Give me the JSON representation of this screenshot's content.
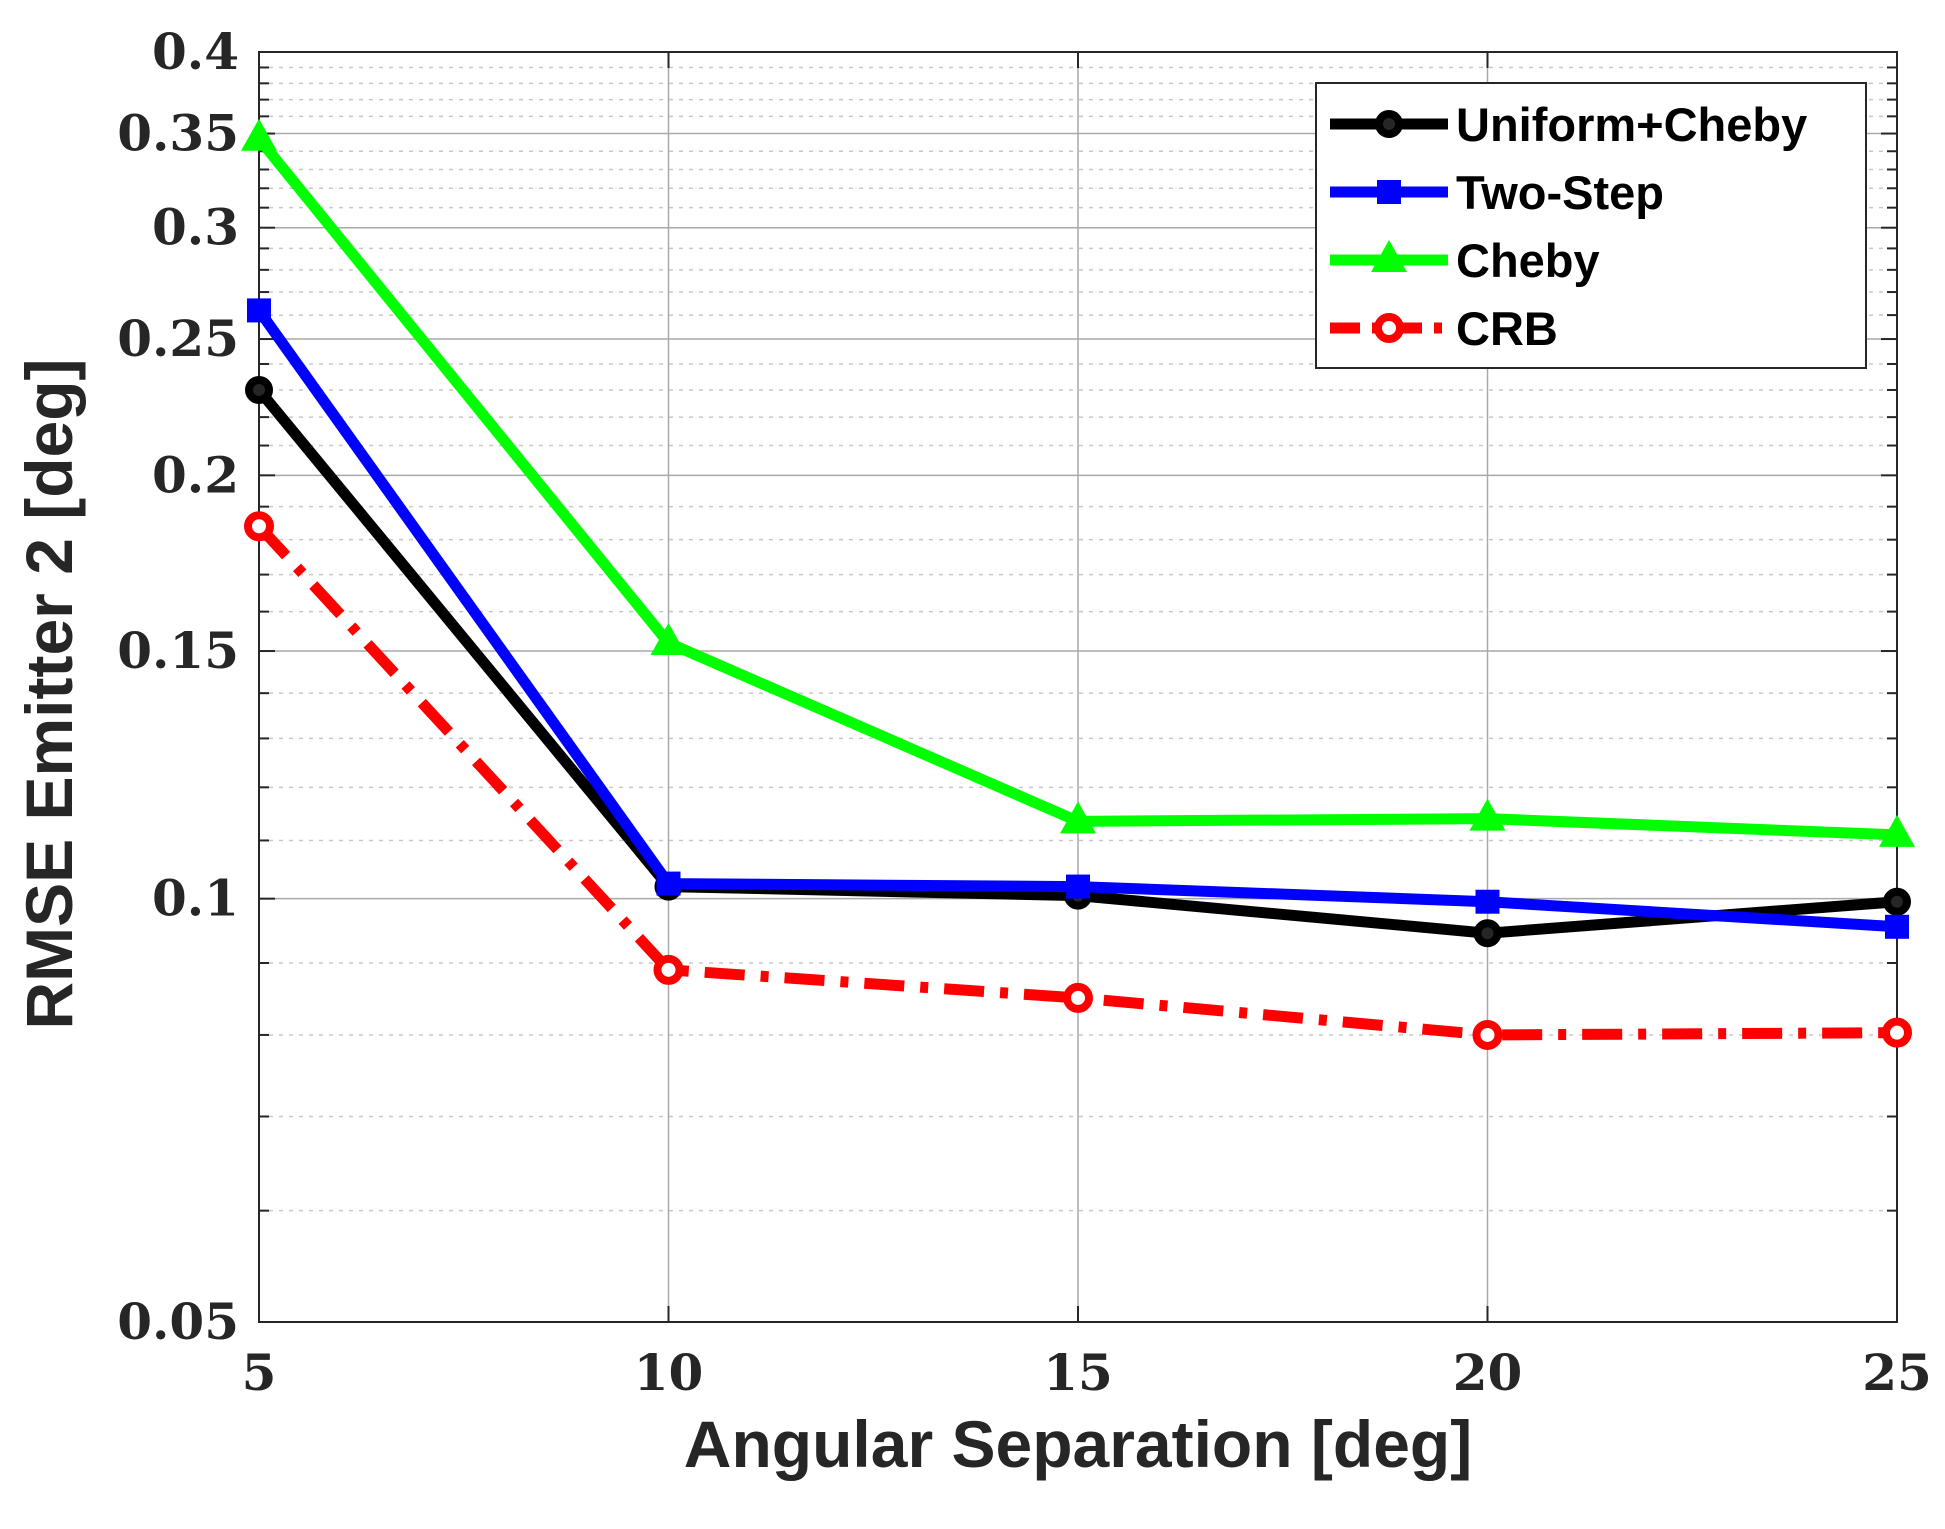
{
  "chart_data": {
    "type": "line",
    "title": "",
    "xlabel": "Angular Separation [deg]",
    "ylabel": "RMSE Emitter 2 [deg]",
    "x": [
      5,
      10,
      15,
      20,
      25
    ],
    "xlim": [
      5,
      25
    ],
    "ylim": [
      0.05,
      0.4
    ],
    "yscale": "log",
    "grid": true,
    "legend_position": "top-right",
    "x_ticks": [
      5,
      10,
      15,
      20,
      25
    ],
    "x_tick_labels": [
      "5",
      "10",
      "15",
      "20",
      "25"
    ],
    "y_ticks": [
      0.05,
      0.1,
      0.15,
      0.2,
      0.25,
      0.3,
      0.35,
      0.4
    ],
    "y_tick_labels": [
      "0.05",
      "0.1",
      "0.15",
      "0.2",
      "0.25",
      "0.3",
      "0.35",
      "0.4"
    ],
    "series": [
      {
        "name": "Uniform+Cheby",
        "color": "#000000",
        "dash": "solid",
        "marker": "circle",
        "values": [
          0.23,
          0.102,
          0.1005,
          0.0945,
          0.0995
        ]
      },
      {
        "name": "Two-Step",
        "color": "#0000ff",
        "dash": "solid",
        "marker": "square",
        "values": [
          0.262,
          0.1025,
          0.102,
          0.0995,
          0.0955
        ]
      },
      {
        "name": "Cheby",
        "color": "#00ff00",
        "dash": "solid",
        "marker": "triangle",
        "values": [
          0.347,
          0.152,
          0.1135,
          0.114,
          0.111
        ]
      },
      {
        "name": "CRB",
        "color": "#ff0000",
        "dash": "dashdot",
        "marker": "circle-open",
        "values": [
          0.184,
          0.089,
          0.085,
          0.08,
          0.0803
        ]
      }
    ]
  }
}
